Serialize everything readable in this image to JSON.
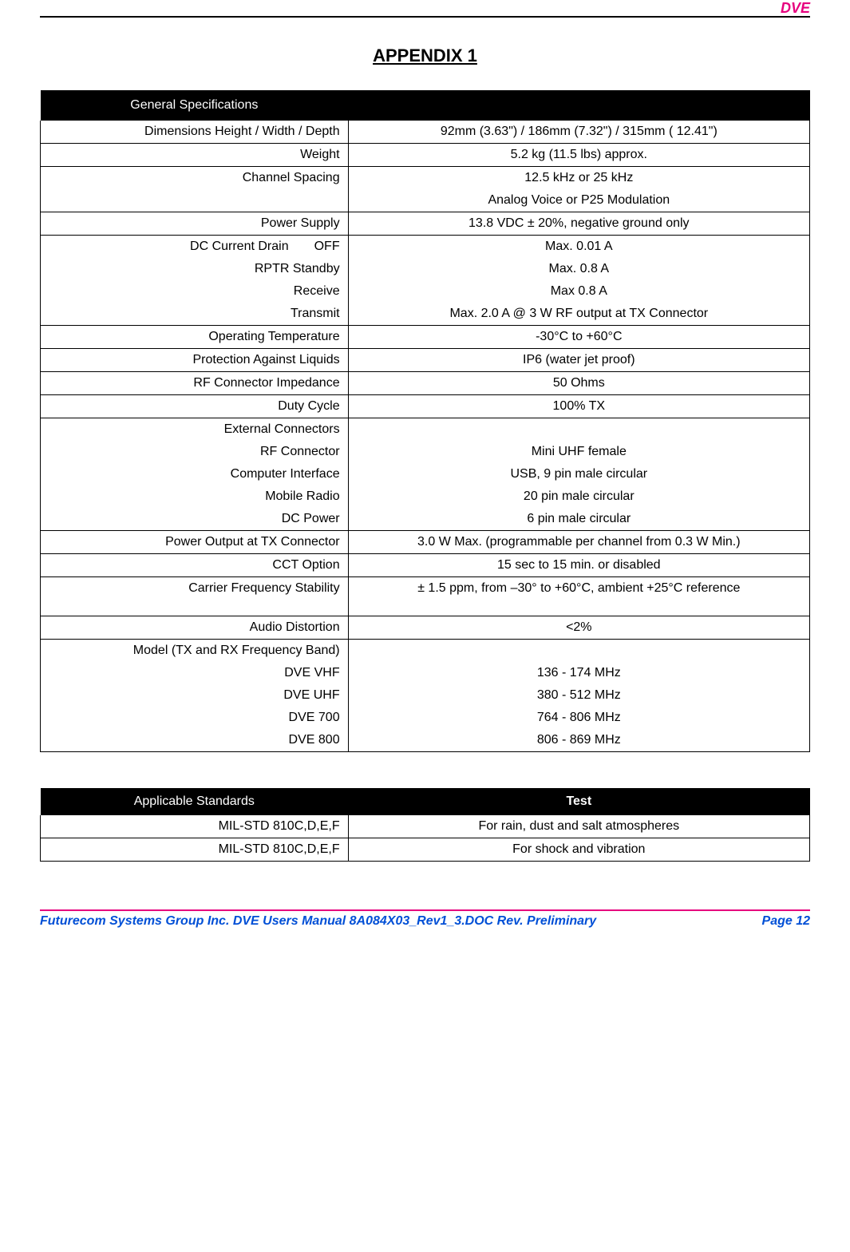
{
  "header": {
    "right": "DVE"
  },
  "title": "APPENDIX 1",
  "table1": {
    "header": "General Specifications",
    "rows": [
      {
        "type": "single",
        "label": "Dimensions Height / Width / Depth",
        "value": "92mm (3.63\") / 186mm (7.32\") / 315mm ( 12.41\")"
      },
      {
        "type": "single",
        "label": "Weight",
        "value": "5.2 kg (11.5 lbs) approx."
      },
      {
        "type": "multi",
        "lines": [
          {
            "label": "Channel Spacing",
            "value": "12.5 kHz or 25 kHz"
          },
          {
            "label": "",
            "value": "Analog Voice or P25 Modulation"
          }
        ]
      },
      {
        "type": "single",
        "label": "Power Supply",
        "value": "13.8 VDC ± 20%, negative ground only"
      },
      {
        "type": "multi",
        "lines": [
          {
            "label": "DC Current Drain  OFF",
            "value": "Max. 0.01 A"
          },
          {
            "label": "RPTR Standby",
            "value": "Max. 0.8 A"
          },
          {
            "label": "Receive",
            "value": "Max 0.8 A"
          },
          {
            "label": "Transmit",
            "value": "Max. 2.0 A @ 3 W RF output at TX Connector"
          }
        ]
      },
      {
        "type": "single",
        "label": "Operating Temperature",
        "value": "-30°C to +60°C"
      },
      {
        "type": "single",
        "label": "Protection Against Liquids",
        "value": "IP6 (water jet proof)"
      },
      {
        "type": "single",
        "label": "RF Connector Impedance",
        "value": "50 Ohms"
      },
      {
        "type": "single",
        "label": "Duty Cycle",
        "value": "100% TX"
      },
      {
        "type": "multi",
        "lines": [
          {
            "label": "External Connectors",
            "value": ""
          },
          {
            "label": "RF Connector",
            "value": "Mini UHF female"
          },
          {
            "label": "Computer Interface",
            "value": "USB, 9 pin male circular"
          },
          {
            "label": "Mobile Radio",
            "value": "20 pin male circular"
          },
          {
            "label": "DC Power",
            "value": "6 pin male circular"
          }
        ]
      },
      {
        "type": "single",
        "label": "Power Output at TX Connector",
        "value": "3.0 W Max. (programmable per channel from 0.3 W Min.)"
      },
      {
        "type": "single",
        "label": "CCT Option",
        "value": "15 sec to 15 min. or disabled"
      },
      {
        "type": "single",
        "label": "Carrier Frequency Stability",
        "value": "± 1.5 ppm, from –30° to +60°C, ambient +25°C reference",
        "tall": true
      },
      {
        "type": "single",
        "label": "Audio Distortion",
        "value": "<2%"
      },
      {
        "type": "multi",
        "lines": [
          {
            "label": "Model (TX and RX Frequency Band)",
            "value": ""
          },
          {
            "label": "DVE VHF",
            "value": "136 - 174 MHz"
          },
          {
            "label": "DVE UHF",
            "value": "380 - 512 MHz"
          },
          {
            "label": "DVE 700",
            "value": "764 - 806 MHz"
          },
          {
            "label": "DVE 800",
            "value": "806 - 869 MHz"
          }
        ]
      }
    ]
  },
  "table2": {
    "header_left": "Applicable Standards",
    "header_right": "Test",
    "rows": [
      {
        "label": "MIL-STD 810C,D,E,F",
        "value": "For rain, dust and salt atmospheres"
      },
      {
        "label": "MIL-STD 810C,D,E,F",
        "value": "For shock and vibration"
      }
    ]
  },
  "footer": {
    "left": "Futurecom Systems Group Inc.  DVE Users Manual 8A084X03_Rev1_3.DOC Rev. Preliminary",
    "right": "Page 12"
  },
  "colors": {
    "magenta": "#e6007e",
    "blue": "#004fd6",
    "black": "#000000",
    "white": "#ffffff"
  }
}
